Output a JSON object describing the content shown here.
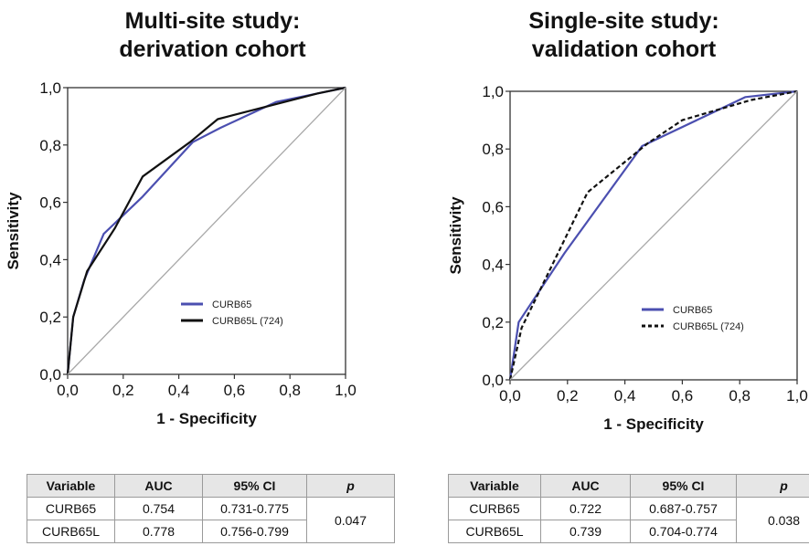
{
  "charts_meta": {
    "colors": {
      "curb65": "#4b4fb0",
      "curb65l": "#111111",
      "diagonal": "#a8a8a8"
    }
  },
  "chart_data": [
    {
      "type": "line",
      "title": "Multi-site study:\nderivation cohort",
      "title_lines": [
        "Multi-site study:",
        "derivation cohort"
      ],
      "xlabel": "1 - Specificity",
      "ylabel": "Sensitivity",
      "xlim": [
        0,
        1
      ],
      "ylim": [
        0,
        1
      ],
      "xticks": [
        "0,0",
        "0,2",
        "0,4",
        "0,6",
        "0,8",
        "1,0"
      ],
      "yticks": [
        "0,0",
        "0,2",
        "0,4",
        "0,6",
        "0,8",
        "1,0"
      ],
      "grid": false,
      "legend": "center-right",
      "series": [
        {
          "name": "CURB65",
          "style": "solid",
          "color": "#4b4fb0",
          "x": [
            0,
            0.02,
            0.06,
            0.13,
            0.27,
            0.45,
            0.55,
            0.75,
            0.9,
            1.0
          ],
          "y": [
            0,
            0.2,
            0.33,
            0.49,
            0.62,
            0.81,
            0.86,
            0.95,
            0.98,
            1.0
          ]
        },
        {
          "name": "CURB65L (724)",
          "style": "solid",
          "color": "#111111",
          "x": [
            0,
            0.02,
            0.07,
            0.17,
            0.27,
            0.44,
            0.54,
            0.74,
            0.9,
            1.0
          ],
          "y": [
            0,
            0.2,
            0.36,
            0.51,
            0.69,
            0.81,
            0.89,
            0.94,
            0.98,
            1.0
          ]
        },
        {
          "name": "",
          "style": "reference",
          "color": "#a8a8a8",
          "x": [
            0,
            1
          ],
          "y": [
            0,
            1
          ]
        }
      ],
      "table": {
        "headers": [
          "Variable",
          "AUC",
          "95% CI",
          "p"
        ],
        "rows": [
          [
            "CURB65",
            "0.754",
            "0.731-0.775"
          ],
          [
            "CURB65L",
            "0.778",
            "0.756-0.799"
          ]
        ],
        "p_value": "0.047"
      }
    },
    {
      "type": "line",
      "title": "Single-site study:\nvalidation cohort",
      "title_lines": [
        "Single-site study:",
        "validation cohort"
      ],
      "xlabel": "1 - Specificity",
      "ylabel": "Sensitivity",
      "xlim": [
        0,
        1
      ],
      "ylim": [
        0,
        1
      ],
      "xticks": [
        "0,0",
        "0,2",
        "0,4",
        "0,6",
        "0,8",
        "1,0"
      ],
      "yticks": [
        "0,0",
        "0,2",
        "0,4",
        "0,6",
        "0,8",
        "1,0"
      ],
      "grid": false,
      "legend": "center-right",
      "series": [
        {
          "name": "CURB65",
          "style": "solid",
          "color": "#4b4fb0",
          "x": [
            0,
            0.03,
            0.19,
            0.46,
            0.82,
            1.0
          ],
          "y": [
            0,
            0.2,
            0.44,
            0.81,
            0.98,
            1.0
          ]
        },
        {
          "name": "CURB65L (724)",
          "style": "dashed",
          "color": "#111111",
          "x": [
            0,
            0.04,
            0.27,
            0.48,
            0.6,
            0.84,
            1.0
          ],
          "y": [
            0,
            0.18,
            0.65,
            0.82,
            0.9,
            0.97,
            1.0
          ]
        },
        {
          "name": "",
          "style": "reference",
          "color": "#a8a8a8",
          "x": [
            0,
            1
          ],
          "y": [
            0,
            1
          ]
        }
      ],
      "table": {
        "headers": [
          "Variable",
          "AUC",
          "95% CI",
          "p"
        ],
        "rows": [
          [
            "CURB65",
            "0.722",
            "0.687-0.757"
          ],
          [
            "CURB65L",
            "0.739",
            "0.704-0.774"
          ]
        ],
        "p_value": "0.038"
      }
    }
  ]
}
